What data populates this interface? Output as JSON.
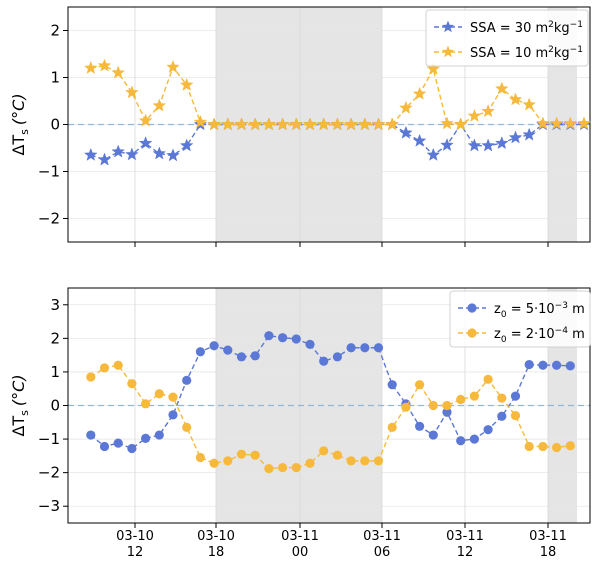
{
  "chart_data": [
    {
      "type": "line",
      "ylabel_main": "ΔT",
      "ylabel_sub": "s",
      "ylabel_unit": "(°C)",
      "ylim": [
        -2.5,
        2.5
      ],
      "yticks": [
        -2,
        -1,
        0,
        1,
        2
      ],
      "ytick_labels": [
        "−2",
        "−1",
        "0",
        "1",
        "2"
      ],
      "grid": true,
      "legend_position": "top-right",
      "zero_line": 0,
      "series": [
        {
          "legend_text": "SSA = 30 m",
          "legend_sup1": "2",
          "legend_mid": "kg",
          "legend_sup2": "−1",
          "marker": "star",
          "color": "#5b78d6",
          "values": [
            -0.65,
            -0.75,
            -0.58,
            -0.64,
            -0.4,
            -0.62,
            -0.66,
            -0.45,
            0.0,
            0,
            0,
            0,
            0,
            0,
            0,
            0,
            0,
            0,
            0,
            0,
            0,
            0,
            0,
            -0.18,
            -0.35,
            -0.65,
            -0.44,
            0.0,
            -0.45,
            -0.45,
            -0.4,
            -0.28,
            -0.22,
            0.0,
            0.0,
            0.0,
            0.0
          ]
        },
        {
          "legend_text": "SSA = 10 m",
          "legend_sup1": "2",
          "legend_mid": "kg",
          "legend_sup2": "−1",
          "marker": "star",
          "color": "#f6b93b",
          "values": [
            1.2,
            1.25,
            1.1,
            0.68,
            0.08,
            0.4,
            1.22,
            0.84,
            0.05,
            0,
            0,
            0,
            0,
            0,
            0,
            0,
            0,
            0,
            0,
            0,
            0,
            0,
            0,
            0.35,
            0.65,
            1.18,
            0.02,
            0.0,
            0.18,
            0.28,
            0.76,
            0.53,
            0.42,
            0.02,
            0.02,
            0.02,
            0.02
          ]
        }
      ]
    },
    {
      "type": "line",
      "ylabel_main": "ΔT",
      "ylabel_sub": "s",
      "ylabel_unit": "(°C)",
      "ylim": [
        -3.5,
        3.5
      ],
      "yticks": [
        -3,
        -2,
        -1,
        0,
        1,
        2,
        3
      ],
      "ytick_labels": [
        "−3",
        "−2",
        "−1",
        "0",
        "1",
        "2",
        "3"
      ],
      "grid": true,
      "legend_position": "top-right",
      "zero_line": 0,
      "x_tick_labels": [
        {
          "date": "03-10",
          "hour": "12"
        },
        {
          "date": "03-10",
          "hour": "18"
        },
        {
          "date": "03-11",
          "hour": "00"
        },
        {
          "date": "03-11",
          "hour": "06"
        },
        {
          "date": "03-11",
          "hour": "12"
        },
        {
          "date": "03-11",
          "hour": "18"
        }
      ],
      "series": [
        {
          "legend_text": "z",
          "legend_sub": "0",
          "legend_rest": " = 5·10",
          "legend_sup": "−3",
          "legend_unit": " m",
          "marker": "circle",
          "color": "#5b78d6",
          "values": [
            -0.88,
            -1.22,
            -1.12,
            -1.28,
            -0.98,
            -0.88,
            -0.28,
            0.75,
            1.6,
            1.78,
            1.65,
            1.45,
            1.48,
            2.08,
            2.02,
            1.98,
            1.82,
            1.32,
            1.45,
            1.72,
            1.72,
            1.72,
            0.62,
            0.05,
            -0.62,
            -0.88,
            -0.2,
            -1.05,
            -1.0,
            -0.72,
            -0.32,
            0.28,
            1.22,
            1.2,
            1.2,
            1.18
          ]
        },
        {
          "legend_text": "z",
          "legend_sub": "0",
          "legend_rest": " = 2·10",
          "legend_sup": "−4",
          "legend_unit": " m",
          "marker": "circle",
          "color": "#f6b93b",
          "values": [
            0.85,
            1.12,
            1.2,
            0.65,
            0.05,
            0.35,
            0.25,
            -0.65,
            -1.55,
            -1.72,
            -1.65,
            -1.45,
            -1.48,
            -1.88,
            -1.85,
            -1.85,
            -1.72,
            -1.35,
            -1.48,
            -1.65,
            -1.65,
            -1.65,
            -0.65,
            -0.05,
            0.62,
            0.0,
            0.0,
            0.18,
            0.28,
            0.78,
            0.22,
            -0.3,
            -1.22,
            -1.22,
            -1.25,
            -1.2
          ]
        }
      ]
    }
  ]
}
